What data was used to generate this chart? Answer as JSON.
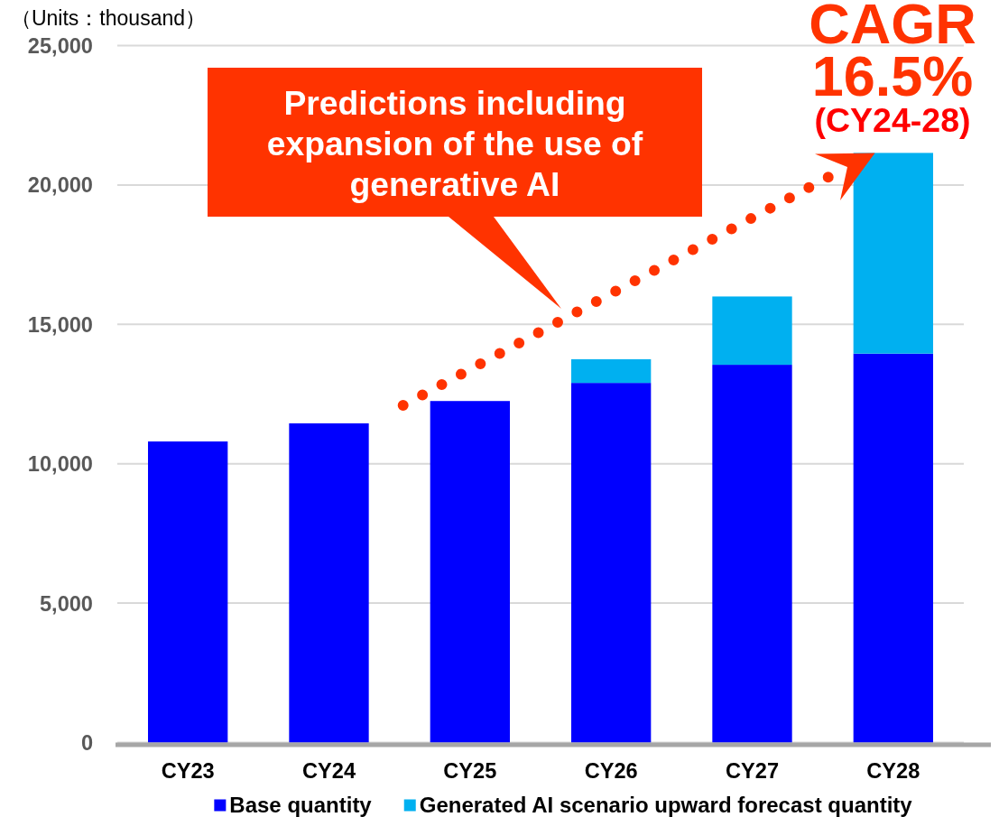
{
  "chart_data": {
    "type": "bar",
    "stacked": true,
    "categories": [
      "CY23",
      "CY24",
      "CY25",
      "CY26",
      "CY27",
      "CY28"
    ],
    "series": [
      {
        "name": "Base quantity",
        "color": "#0000ff",
        "values": [
          10800,
          11450,
          12250,
          12900,
          13550,
          13950
        ]
      },
      {
        "name": "Generated AI scenario upward forecast quantity",
        "color": "#00b0f0",
        "values": [
          null,
          null,
          null,
          850,
          2450,
          7200
        ]
      }
    ],
    "ylim": [
      0,
      25000
    ],
    "yticks": [
      0,
      {
        "value": 5000,
        "label": "5,000"
      },
      {
        "value": 10000,
        "label": "10,000"
      },
      {
        "value": 15000,
        "label": "15,000"
      },
      {
        "value": 20000,
        "label": "20,000"
      },
      {
        "value": 25000,
        "label": "25,000"
      }
    ],
    "grid": "y",
    "legend": "bottom",
    "annotations": [
      "（Units：thousand）",
      "Predictions including\nexpansion of the use of\ngenerative AI",
      "CAGR",
      "16.5%",
      "(CY24-28)"
    ]
  }
}
